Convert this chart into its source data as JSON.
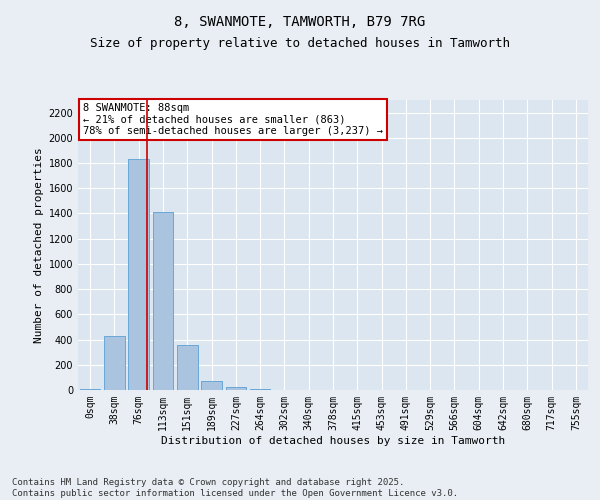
{
  "title": "8, SWANMOTE, TAMWORTH, B79 7RG",
  "subtitle": "Size of property relative to detached houses in Tamworth",
  "xlabel": "Distribution of detached houses by size in Tamworth",
  "ylabel": "Number of detached properties",
  "categories": [
    "0sqm",
    "38sqm",
    "76sqm",
    "113sqm",
    "151sqm",
    "189sqm",
    "227sqm",
    "264sqm",
    "302sqm",
    "340sqm",
    "378sqm",
    "415sqm",
    "453sqm",
    "491sqm",
    "529sqm",
    "566sqm",
    "604sqm",
    "642sqm",
    "680sqm",
    "717sqm",
    "755sqm"
  ],
  "bar_values": [
    10,
    430,
    1830,
    1415,
    360,
    75,
    25,
    5,
    0,
    0,
    0,
    0,
    0,
    0,
    0,
    0,
    0,
    0,
    0,
    0,
    0
  ],
  "bar_color": "#aac4e0",
  "bar_edge_color": "#5a9fd4",
  "vline_x": 2.33,
  "vline_color": "#cc0000",
  "annotation_text": "8 SWANMOTE: 88sqm\n← 21% of detached houses are smaller (863)\n78% of semi-detached houses are larger (3,237) →",
  "annotation_box_color": "#cc0000",
  "ylim": [
    0,
    2300
  ],
  "yticks": [
    0,
    200,
    400,
    600,
    800,
    1000,
    1200,
    1400,
    1600,
    1800,
    2000,
    2200
  ],
  "bg_color": "#e8eef4",
  "plot_bg_color": "#dce6f0",
  "footer": "Contains HM Land Registry data © Crown copyright and database right 2025.\nContains public sector information licensed under the Open Government Licence v3.0.",
  "title_fontsize": 10,
  "subtitle_fontsize": 9,
  "axis_label_fontsize": 8,
  "tick_fontsize": 7,
  "footer_fontsize": 6.5,
  "annotation_fontsize": 7.5
}
